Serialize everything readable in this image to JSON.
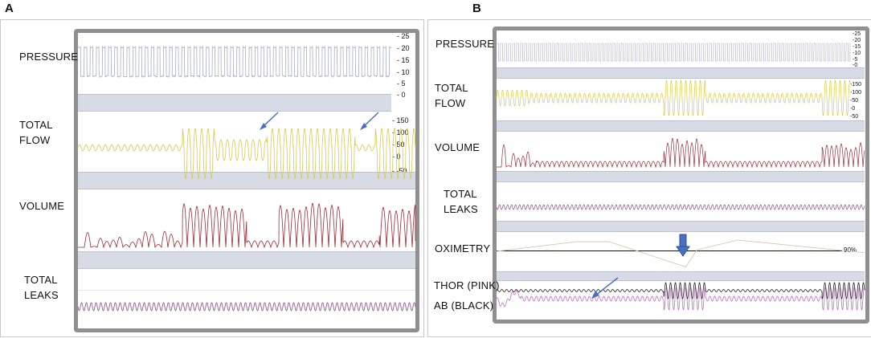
{
  "panels": [
    {
      "letter": "A",
      "labels": {
        "pressure": "PRESSURE",
        "flow": "TOTAL\nFLOW",
        "volume": "VOLUME",
        "leaks": "TOTAL\nLEAKS"
      },
      "pressure_ticks": [
        "- 25",
        "- 20",
        "- 15",
        "- 10",
        "- 5",
        "- 0"
      ],
      "flow_ticks": [
        "- 150",
        "- 100",
        "- 50",
        "- 0",
        "- -50"
      ]
    },
    {
      "letter": "B",
      "labels": {
        "pressure": "PRESSURE",
        "flow": "TOTAL\nFLOW",
        "volume": "VOLUME",
        "leaks": "TOTAL\nLEAKS",
        "oximetry": "OXIMETRY",
        "thor": "THOR (PINK)",
        "ab": "AB (BLACK)"
      },
      "pressure_ticks": [
        "-25",
        "-20",
        "-15",
        "-10",
        "-5",
        "-0"
      ],
      "flow_ticks": [
        "-150",
        "-100",
        "-50",
        "-0",
        "-50"
      ],
      "oximetry_value": "90%"
    }
  ],
  "colors": {
    "pressure": "#a9adc7",
    "flow": "#d9c84a",
    "volume": "#9b2a35",
    "leaks": "#8a4a8a",
    "oximetry": "#d8c8b0",
    "thor": "#c070c8",
    "ab": "#222222",
    "arrow": "#4a6fc0"
  }
}
